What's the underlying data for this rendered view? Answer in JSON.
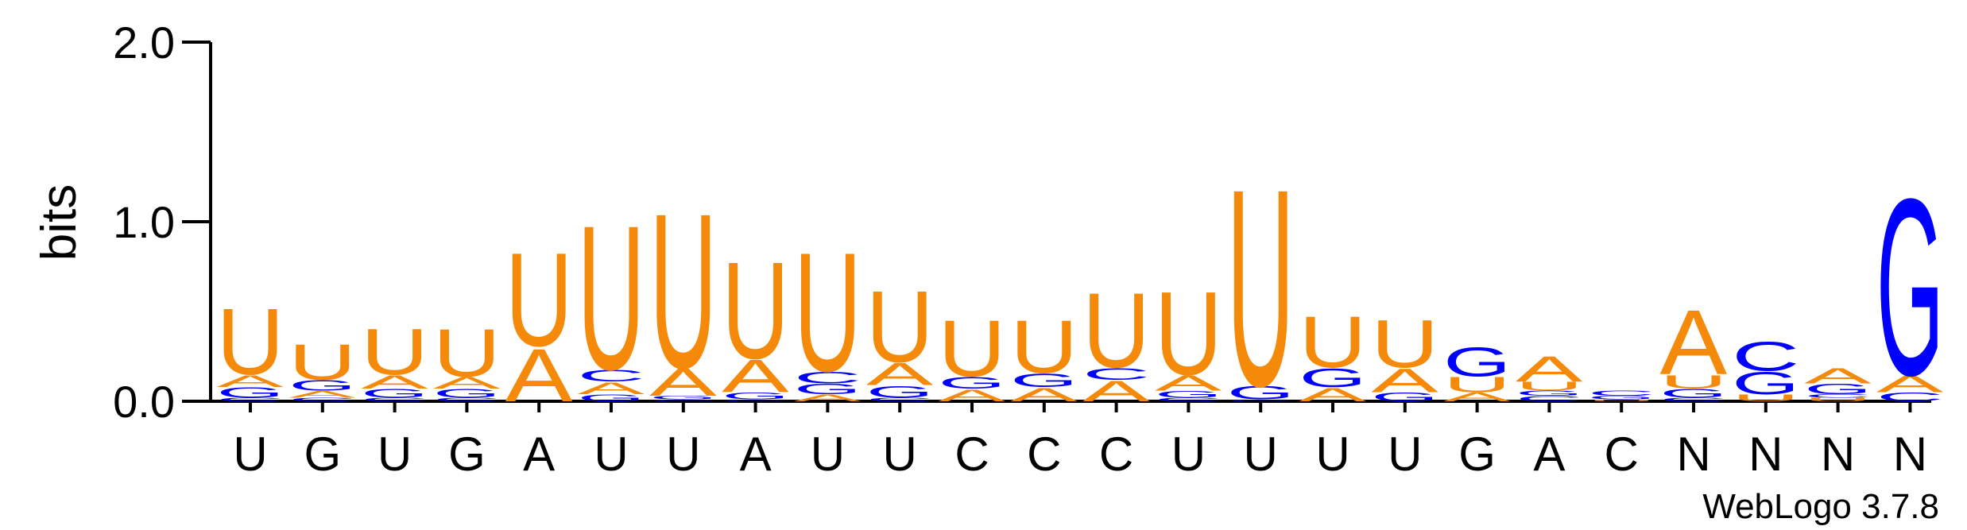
{
  "chart_data": {
    "type": "sequence-logo",
    "ylabel": "bits",
    "ylim": [
      0,
      2
    ],
    "yticks": [
      "0.0",
      "1.0",
      "2.0"
    ],
    "credit": "WebLogo 3.7.8",
    "colors": {
      "A": "#f58a0a",
      "U": "#f58a0a",
      "G": "#0000ff",
      "C": "#0000ff",
      "N": "#000000"
    },
    "positions": [
      {
        "label": "U",
        "stack": [
          [
            "C",
            0.02
          ],
          [
            "G",
            0.06
          ],
          [
            "A",
            0.07
          ],
          [
            "U",
            0.39
          ]
        ]
      },
      {
        "label": "G",
        "stack": [
          [
            "C",
            0.02
          ],
          [
            "A",
            0.04
          ],
          [
            "G",
            0.06
          ],
          [
            "U",
            0.21
          ]
        ]
      },
      {
        "label": "U",
        "stack": [
          [
            "C",
            0.02
          ],
          [
            "G",
            0.05
          ],
          [
            "A",
            0.08
          ],
          [
            "U",
            0.27
          ]
        ]
      },
      {
        "label": "G",
        "stack": [
          [
            "C",
            0.02
          ],
          [
            "G",
            0.05
          ],
          [
            "A",
            0.07
          ],
          [
            "U",
            0.28
          ]
        ]
      },
      {
        "label": "A",
        "stack": [
          [
            "A",
            0.31
          ],
          [
            "U",
            0.55
          ]
        ]
      },
      {
        "label": "U",
        "stack": [
          [
            "G",
            0.04
          ],
          [
            "A",
            0.07
          ],
          [
            "C",
            0.07
          ],
          [
            "U",
            0.85
          ]
        ]
      },
      {
        "label": "U",
        "stack": [
          [
            "C",
            0.01
          ],
          [
            "G",
            0.02
          ],
          [
            "A",
            0.16
          ],
          [
            "U",
            0.91
          ]
        ]
      },
      {
        "label": "A",
        "stack": [
          [
            "C",
            0.01
          ],
          [
            "G",
            0.04
          ],
          [
            "A",
            0.19
          ],
          [
            "U",
            0.57
          ]
        ]
      },
      {
        "label": "U",
        "stack": [
          [
            "A",
            0.04
          ],
          [
            "G",
            0.06
          ],
          [
            "C",
            0.07
          ],
          [
            "U",
            0.7
          ]
        ]
      },
      {
        "label": "U",
        "stack": [
          [
            "C",
            0.02
          ],
          [
            "G",
            0.07
          ],
          [
            "A",
            0.13
          ],
          [
            "U",
            0.42
          ]
        ]
      },
      {
        "label": "C",
        "stack": [
          [
            "A",
            0.07
          ],
          [
            "G",
            0.07
          ],
          [
            "U",
            0.33
          ]
        ]
      },
      {
        "label": "C",
        "stack": [
          [
            "A",
            0.08
          ],
          [
            "G",
            0.08
          ],
          [
            "U",
            0.31
          ]
        ]
      },
      {
        "label": "C",
        "stack": [
          [
            "A",
            0.12
          ],
          [
            "C",
            0.07
          ],
          [
            "U",
            0.44
          ]
        ]
      },
      {
        "label": "U",
        "stack": [
          [
            "C",
            0.02
          ],
          [
            "G",
            0.04
          ],
          [
            "A",
            0.09
          ],
          [
            "U",
            0.49
          ]
        ]
      },
      {
        "label": "U",
        "stack": [
          [
            "C",
            0.01
          ],
          [
            "G",
            0.08
          ],
          [
            "U",
            1.16
          ]
        ]
      },
      {
        "label": "U",
        "stack": [
          [
            "A",
            0.08
          ],
          [
            "G",
            0.11
          ],
          [
            "U",
            0.3
          ]
        ]
      },
      {
        "label": "U",
        "stack": [
          [
            "G",
            0.05
          ],
          [
            "A",
            0.14
          ],
          [
            "U",
            0.28
          ]
        ]
      },
      {
        "label": "G",
        "stack": [
          [
            "A",
            0.05
          ],
          [
            "U",
            0.09
          ],
          [
            "G",
            0.17
          ]
        ]
      },
      {
        "label": "A",
        "stack": [
          [
            "C",
            0.03
          ],
          [
            "G",
            0.03
          ],
          [
            "U",
            0.05
          ],
          [
            "A",
            0.15
          ]
        ]
      },
      {
        "label": "C",
        "stack": [
          [
            "U",
            0.01
          ],
          [
            "G",
            0.02
          ],
          [
            "C",
            0.03
          ]
        ]
      },
      {
        "label": "N",
        "stack": [
          [
            "C",
            0.02
          ],
          [
            "G",
            0.05
          ],
          [
            "U",
            0.08
          ],
          [
            "A",
            0.38
          ]
        ]
      },
      {
        "label": "N",
        "stack": [
          [
            "U",
            0.04
          ],
          [
            "G",
            0.13
          ],
          [
            "C",
            0.17
          ]
        ]
      },
      {
        "label": "N",
        "stack": [
          [
            "U",
            0.02
          ],
          [
            "C",
            0.02
          ],
          [
            "G",
            0.06
          ],
          [
            "A",
            0.09
          ]
        ]
      },
      {
        "label": "N",
        "stack": [
          [
            "C",
            0.05
          ],
          [
            "A",
            0.1
          ],
          [
            "G",
            1.04
          ]
        ]
      }
    ]
  }
}
